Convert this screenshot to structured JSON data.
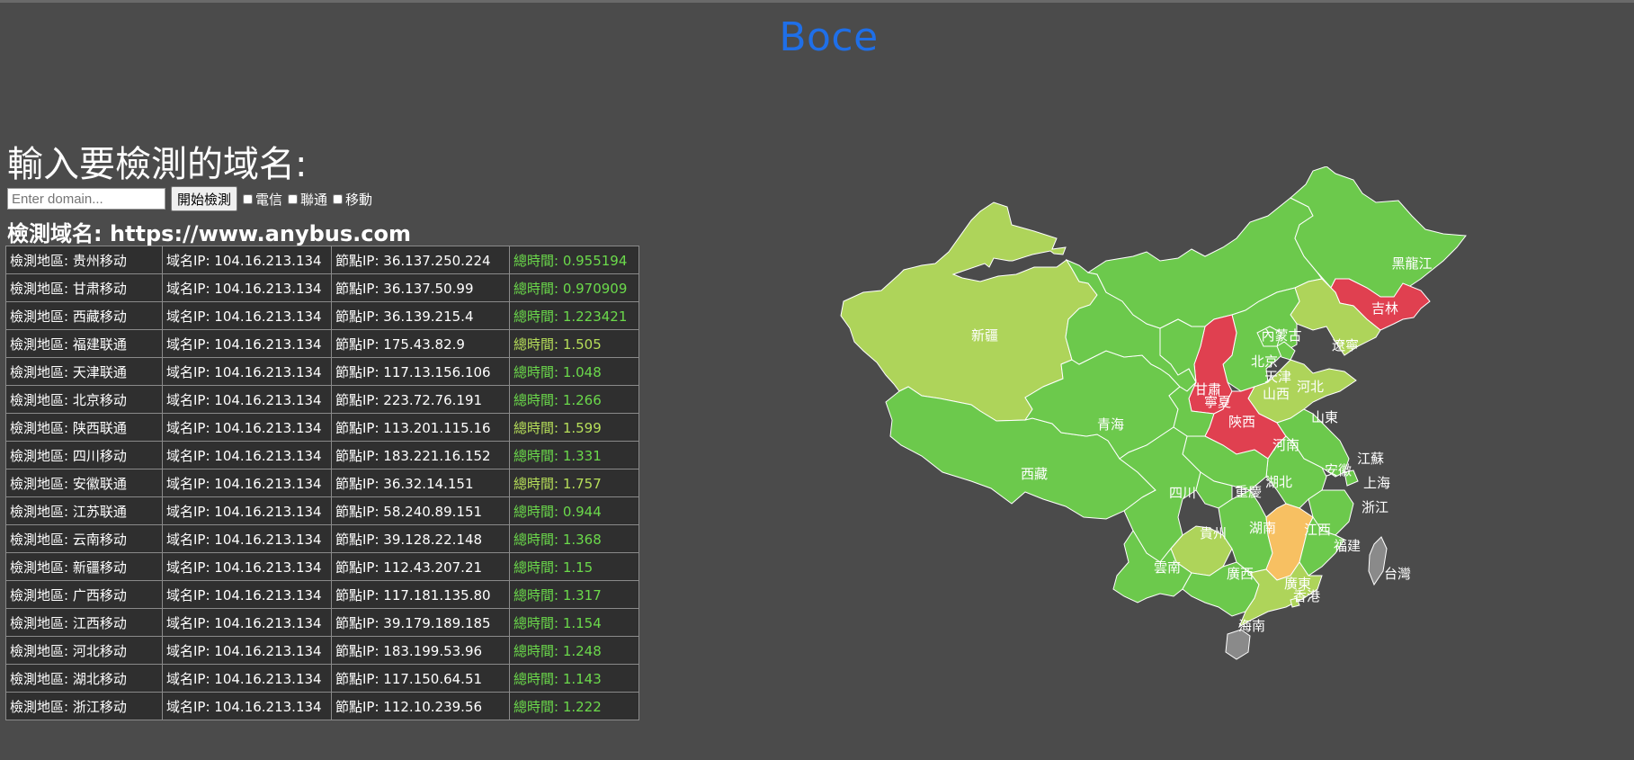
{
  "brand": "Boce",
  "heading": "輸入要檢測的域名:",
  "search": {
    "placeholder": "Enter domain...",
    "button": "開始檢測"
  },
  "carriers": [
    "電信",
    "聯通",
    "移動"
  ],
  "domain_line": "檢測域名: https://www.anybus.com",
  "results": [
    {
      "region": "檢測地區: 贵州移动",
      "ip": "域名IP: 104.16.213.134",
      "node": "節點IP: 36.137.250.224",
      "time": "總時間: 0.955194",
      "color": "green"
    },
    {
      "region": "檢測地區: 甘肃移动",
      "ip": "域名IP: 104.16.213.134",
      "node": "節點IP: 36.137.50.99",
      "time": "總時間: 0.970909",
      "color": "green"
    },
    {
      "region": "檢測地區: 西藏移动",
      "ip": "域名IP: 104.16.213.134",
      "node": "節點IP: 36.139.215.4",
      "time": "總時間: 1.223421",
      "color": "green"
    },
    {
      "region": "檢測地區: 福建联通",
      "ip": "域名IP: 104.16.213.134",
      "node": "節點IP: 175.43.82.9",
      "time": "總時間: 1.505",
      "color": "lime"
    },
    {
      "region": "檢測地區: 天津联通",
      "ip": "域名IP: 104.16.213.134",
      "node": "節點IP: 117.13.156.106",
      "time": "總時間: 1.048",
      "color": "green"
    },
    {
      "region": "檢測地區: 北京移动",
      "ip": "域名IP: 104.16.213.134",
      "node": "節點IP: 223.72.76.191",
      "time": "總時間: 1.266",
      "color": "green"
    },
    {
      "region": "檢測地區: 陕西联通",
      "ip": "域名IP: 104.16.213.134",
      "node": "節點IP: 113.201.115.16",
      "time": "總時間: 1.599",
      "color": "lime"
    },
    {
      "region": "檢測地區: 四川移动",
      "ip": "域名IP: 104.16.213.134",
      "node": "節點IP: 183.221.16.152",
      "time": "總時間: 1.331",
      "color": "green"
    },
    {
      "region": "檢測地區: 安徽联通",
      "ip": "域名IP: 104.16.213.134",
      "node": "節點IP: 36.32.14.151",
      "time": "總時間: 1.757",
      "color": "lime"
    },
    {
      "region": "檢測地區: 江苏联通",
      "ip": "域名IP: 104.16.213.134",
      "node": "節點IP: 58.240.89.151",
      "time": "總時間: 0.944",
      "color": "green"
    },
    {
      "region": "檢測地區: 云南移动",
      "ip": "域名IP: 104.16.213.134",
      "node": "節點IP: 39.128.22.148",
      "time": "總時間: 1.368",
      "color": "green"
    },
    {
      "region": "檢測地區: 新疆移动",
      "ip": "域名IP: 104.16.213.134",
      "node": "節點IP: 112.43.207.21",
      "time": "總時間: 1.15",
      "color": "green"
    },
    {
      "region": "檢測地區: 广西移动",
      "ip": "域名IP: 104.16.213.134",
      "node": "節點IP: 117.181.135.80",
      "time": "總時間: 1.317",
      "color": "green"
    },
    {
      "region": "檢測地區: 江西移动",
      "ip": "域名IP: 104.16.213.134",
      "node": "節點IP: 39.179.189.185",
      "time": "總時間: 1.154",
      "color": "green"
    },
    {
      "region": "檢測地區: 河北移动",
      "ip": "域名IP: 104.16.213.134",
      "node": "節點IP: 183.199.53.96",
      "time": "總時間: 1.248",
      "color": "green"
    },
    {
      "region": "檢測地區: 湖北移动",
      "ip": "域名IP: 104.16.213.134",
      "node": "節點IP: 117.150.64.51",
      "time": "總時間: 1.143",
      "color": "green"
    },
    {
      "region": "檢測地區: 浙江移动",
      "ip": "域名IP: 104.16.213.134",
      "node": "節點IP: 112.10.239.56",
      "time": "總時間: 1.222",
      "color": "green"
    }
  ],
  "map": {
    "colors": {
      "green": "#6cc94c",
      "lime": "#aed45a",
      "red": "#e04050",
      "orange": "#f7c062",
      "gray": "#8a8a8a"
    },
    "provinces": [
      {
        "id": "xinjiang",
        "label": "新疆",
        "color": "lime"
      },
      {
        "id": "xizang",
        "label": "西藏",
        "color": "green"
      },
      {
        "id": "qinghai",
        "label": "青海",
        "color": "green"
      },
      {
        "id": "gansu",
        "label": "甘肅",
        "color": "green"
      },
      {
        "id": "neimenggu",
        "label": "內蒙古",
        "color": "green"
      },
      {
        "id": "heilongjiang",
        "label": "黑龍江",
        "color": "green"
      },
      {
        "id": "jilin",
        "label": "吉林",
        "color": "red"
      },
      {
        "id": "liaoning",
        "label": "遼寧",
        "color": "lime"
      },
      {
        "id": "beijing",
        "label": "北京",
        "color": "green"
      },
      {
        "id": "tianjin",
        "label": "天津",
        "color": "green"
      },
      {
        "id": "hebei",
        "label": "河北",
        "color": "green"
      },
      {
        "id": "shanxi",
        "label": "山西",
        "color": "red"
      },
      {
        "id": "shandong",
        "label": "山東",
        "color": "lime"
      },
      {
        "id": "ningxia",
        "label": "寧夏",
        "color": "green"
      },
      {
        "id": "shaanxi",
        "label": "陝西",
        "color": "green"
      },
      {
        "id": "henan",
        "label": "河南",
        "color": "red"
      },
      {
        "id": "jiangsu",
        "label": "江蘇",
        "color": "green"
      },
      {
        "id": "anhui",
        "label": "安徽",
        "color": "green"
      },
      {
        "id": "shanghai",
        "label": "上海",
        "color": "green"
      },
      {
        "id": "hubei",
        "label": "湖北",
        "color": "green"
      },
      {
        "id": "sichuan",
        "label": "四川",
        "color": "green"
      },
      {
        "id": "chongqing",
        "label": "重慶",
        "color": "green"
      },
      {
        "id": "zhejiang",
        "label": "浙江",
        "color": "green"
      },
      {
        "id": "guizhou",
        "label": "貴州",
        "color": "lime"
      },
      {
        "id": "hunan",
        "label": "湖南",
        "color": "green"
      },
      {
        "id": "jiangxi",
        "label": "江西",
        "color": "orange"
      },
      {
        "id": "fujian",
        "label": "福建",
        "color": "green"
      },
      {
        "id": "yunnan",
        "label": "雲南",
        "color": "green"
      },
      {
        "id": "guangxi",
        "label": "廣西",
        "color": "green"
      },
      {
        "id": "guangdong",
        "label": "廣東",
        "color": "lime"
      },
      {
        "id": "xianggang",
        "label": "香港",
        "color": "lime"
      },
      {
        "id": "taiwan",
        "label": "台灣",
        "color": "gray"
      },
      {
        "id": "hainan",
        "label": "海南",
        "color": "gray"
      }
    ]
  }
}
